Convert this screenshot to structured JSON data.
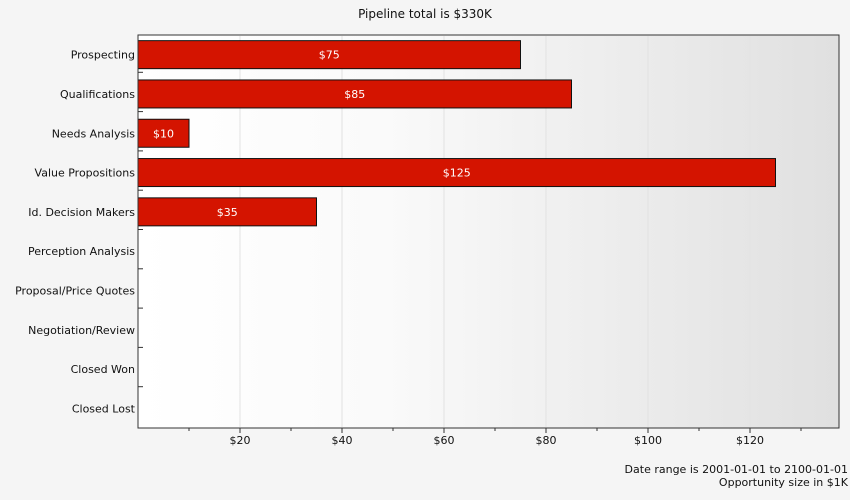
{
  "chart_data": {
    "type": "bar",
    "orientation": "horizontal",
    "title": "Pipeline total is $330K",
    "categories": [
      "Prospecting",
      "Qualifications",
      "Needs Analysis",
      "Value Propositions",
      "Id. Decision Makers",
      "Perception Analysis",
      "Proposal/Price Quotes",
      "Negotiation/Review",
      "Closed Won",
      "Closed Lost"
    ],
    "values": [
      75,
      85,
      10,
      125,
      35,
      0,
      0,
      0,
      0,
      0
    ],
    "value_labels": [
      "$75",
      "$85",
      "$10",
      "$125",
      "$35",
      "",
      "",
      "",
      "",
      ""
    ],
    "xticks": [
      20,
      40,
      60,
      80,
      100,
      120
    ],
    "xtick_labels": [
      "$20",
      "$40",
      "$60",
      "$80",
      "$100",
      "$120"
    ],
    "xlim": [
      0,
      137.5
    ],
    "grid": true,
    "bar_color": "#d41400",
    "bar_edge_color": "#111111"
  },
  "footnote": {
    "date_range": "Date range is 2001-01-01 to 2100-01-01",
    "size_unit": "Opportunity size in $1K"
  }
}
